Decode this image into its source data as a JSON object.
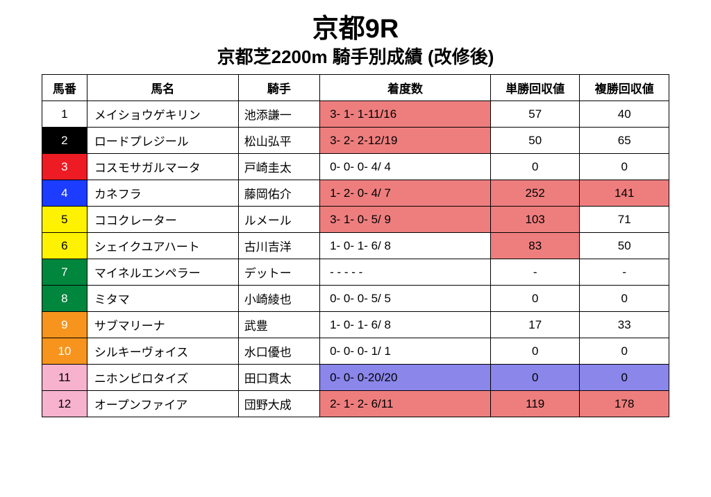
{
  "title": "京都9R",
  "subtitle": "京都芝2200m 騎手別成績 (改修後)",
  "columns": [
    "馬番",
    "馬名",
    "騎手",
    "着度数",
    "単勝回収値",
    "複勝回収値"
  ],
  "colors": {
    "highlight_red": "#ee7e7e",
    "highlight_blue": "#8a86ea",
    "white": "#ffffff",
    "black": "#000000",
    "red": "#ed1c24",
    "blue": "#1c3cff",
    "yellow": "#fff200",
    "green": "#00863d",
    "orange": "#f7941d",
    "pink": "#f7b2ce"
  },
  "rows": [
    {
      "num": "1",
      "num_bg": "white",
      "num_fg": "#000000",
      "name": "メイショウゲキリン",
      "jockey": "池添謙一",
      "record": "3- 1- 1-11/16",
      "record_hl": "red",
      "win": "57",
      "win_hl": null,
      "place": "40",
      "place_hl": null
    },
    {
      "num": "2",
      "num_bg": "black",
      "num_fg": "#ffffff",
      "name": "ロードプレジール",
      "jockey": "松山弘平",
      "record": "3- 2- 2-12/19",
      "record_hl": "red",
      "win": "50",
      "win_hl": null,
      "place": "65",
      "place_hl": null
    },
    {
      "num": "3",
      "num_bg": "red",
      "num_fg": "#ffffff",
      "name": "コスモサガルマータ",
      "jockey": "戸崎圭太",
      "record": "0- 0- 0- 4/ 4",
      "record_hl": null,
      "win": "0",
      "win_hl": null,
      "place": "0",
      "place_hl": null
    },
    {
      "num": "4",
      "num_bg": "blue",
      "num_fg": "#ffffff",
      "name": "カネフラ",
      "jockey": "藤岡佑介",
      "record": "1- 2- 0- 4/ 7",
      "record_hl": "red",
      "win": "252",
      "win_hl": "red",
      "place": "141",
      "place_hl": "red"
    },
    {
      "num": "5",
      "num_bg": "yellow",
      "num_fg": "#000000",
      "name": "ココクレーター",
      "jockey": "ルメール",
      "record": "3- 1- 0- 5/ 9",
      "record_hl": "red",
      "win": "103",
      "win_hl": "red",
      "place": "71",
      "place_hl": null
    },
    {
      "num": "6",
      "num_bg": "yellow",
      "num_fg": "#000000",
      "name": "シェイクユアハート",
      "jockey": "古川吉洋",
      "record": "1- 0- 1- 6/ 8",
      "record_hl": null,
      "win": "83",
      "win_hl": "red",
      "place": "50",
      "place_hl": null
    },
    {
      "num": "7",
      "num_bg": "green",
      "num_fg": "#ffffff",
      "name": "マイネルエンペラー",
      "jockey": "デットー",
      "record": " -  -  -  -  - ",
      "record_hl": null,
      "win": "-",
      "win_hl": null,
      "place": "-",
      "place_hl": null
    },
    {
      "num": "8",
      "num_bg": "green",
      "num_fg": "#ffffff",
      "name": "ミタマ",
      "jockey": "小崎綾也",
      "record": "0- 0- 0- 5/ 5",
      "record_hl": null,
      "win": "0",
      "win_hl": null,
      "place": "0",
      "place_hl": null
    },
    {
      "num": "9",
      "num_bg": "orange",
      "num_fg": "#ffffff",
      "name": "サブマリーナ",
      "jockey": "武豊",
      "record": "1- 0- 1- 6/ 8",
      "record_hl": null,
      "win": "17",
      "win_hl": null,
      "place": "33",
      "place_hl": null
    },
    {
      "num": "10",
      "num_bg": "orange",
      "num_fg": "#ffffff",
      "name": "シルキーヴォイス",
      "jockey": "水口優也",
      "record": "0- 0- 0- 1/ 1",
      "record_hl": null,
      "win": "0",
      "win_hl": null,
      "place": "0",
      "place_hl": null
    },
    {
      "num": "11",
      "num_bg": "pink",
      "num_fg": "#000000",
      "name": "ニホンピロタイズ",
      "jockey": "田口貫太",
      "record": "0- 0- 0-20/20",
      "record_hl": "blue",
      "win": "0",
      "win_hl": "blue",
      "place": "0",
      "place_hl": "blue"
    },
    {
      "num": "12",
      "num_bg": "pink",
      "num_fg": "#000000",
      "name": "オープンファイア",
      "jockey": "団野大成",
      "record": "2- 1- 2- 6/11",
      "record_hl": "red",
      "win": "119",
      "win_hl": "red",
      "place": "178",
      "place_hl": "red"
    }
  ]
}
